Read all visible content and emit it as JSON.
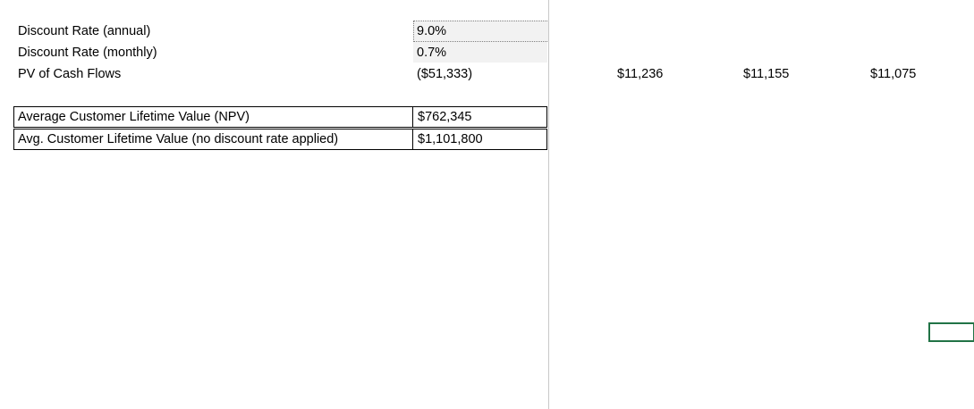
{
  "rows": {
    "discount_annual": {
      "label": "Discount Rate (annual)",
      "value": "9.0%"
    },
    "discount_monthly": {
      "label": "Discount Rate (monthly)",
      "value": "0.7%"
    },
    "pv_cash_flows": {
      "label": "PV of Cash Flows",
      "value": "($51,333)",
      "month_values": [
        "$11,236",
        "$11,155",
        "$11,075"
      ]
    }
  },
  "summary": {
    "npv": {
      "label": "Average Customer Lifetime Value (NPV)",
      "value": "$762,345"
    },
    "no_discount": {
      "label": "Avg. Customer Lifetime Value (no discount rate applied)",
      "value": "$1,101,800"
    }
  },
  "colors": {
    "input_fill": "#f2f2f2",
    "selection": "#217346",
    "freeze_pane": "#c8c8c8"
  }
}
